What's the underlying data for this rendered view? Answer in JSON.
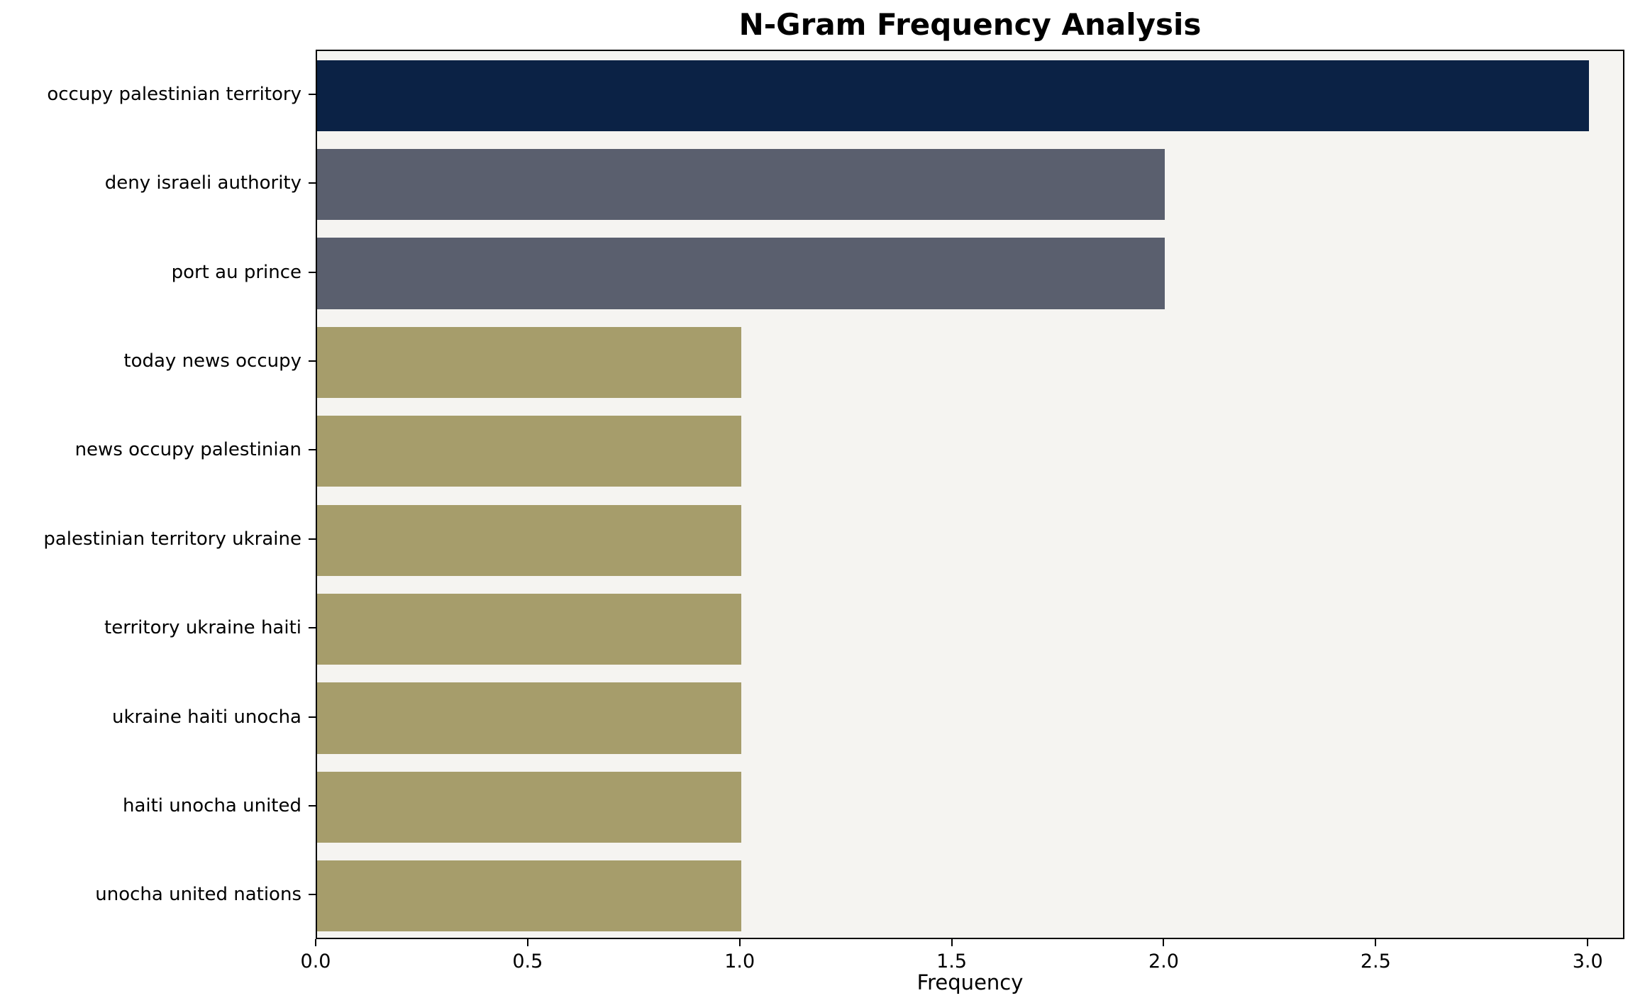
{
  "chart_data": {
    "type": "bar",
    "orientation": "horizontal",
    "title": "N-Gram Frequency Analysis",
    "xlabel": "Frequency",
    "ylabel": "",
    "categories": [
      "occupy palestinian territory",
      "deny israeli authority",
      "port au prince",
      "today news occupy",
      "news occupy palestinian",
      "palestinian territory ukraine",
      "territory ukraine haiti",
      "ukraine haiti unocha",
      "haiti unocha united",
      "unocha united nations"
    ],
    "values": [
      3,
      2,
      2,
      1,
      1,
      1,
      1,
      1,
      1,
      1
    ],
    "bar_colors": [
      "#0b2245",
      "#5a5f6e",
      "#5a5f6e",
      "#a69d6b",
      "#a69d6b",
      "#a69d6b",
      "#a69d6b",
      "#a69d6b",
      "#a69d6b",
      "#a69d6b"
    ],
    "xticks": [
      0.0,
      0.5,
      1.0,
      1.5,
      2.0,
      2.5,
      3.0
    ],
    "xlim": [
      0,
      3.08
    ],
    "grid": false,
    "legend": false,
    "plot_background": "#f5f4f1",
    "bar_height_ratio": 0.8
  }
}
